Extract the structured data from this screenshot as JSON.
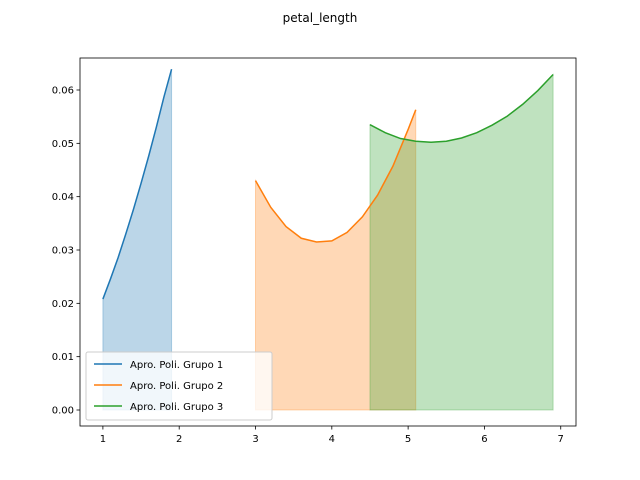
{
  "chart_data": {
    "type": "line",
    "title": "petal_length",
    "xlabel": "",
    "ylabel": "",
    "xlim": [
      0.7,
      7.2
    ],
    "ylim": [
      -0.003,
      0.066
    ],
    "xticks": [
      1,
      2,
      3,
      4,
      5,
      6,
      7
    ],
    "yticks": [
      0.0,
      0.01,
      0.02,
      0.03,
      0.04,
      0.05,
      0.06
    ],
    "ytick_labels": [
      "0.00",
      "0.01",
      "0.02",
      "0.03",
      "0.04",
      "0.05",
      "0.06"
    ],
    "grid": false,
    "legend": "lower-left",
    "series": [
      {
        "name": "Apro. Poli. Grupo 1",
        "color": "#1f77b4",
        "fill": true,
        "x": [
          1.0,
          1.1,
          1.2,
          1.3,
          1.4,
          1.5,
          1.6,
          1.7,
          1.8,
          1.9
        ],
        "y": [
          0.0208,
          0.0246,
          0.0286,
          0.033,
          0.0376,
          0.0425,
          0.0476,
          0.053,
          0.0587,
          0.0639
        ]
      },
      {
        "name": "Apro. Poli. Grupo 2",
        "color": "#ff7f0e",
        "fill": true,
        "x": [
          3.0,
          3.2,
          3.4,
          3.6,
          3.8,
          4.0,
          4.2,
          4.4,
          4.6,
          4.8,
          5.0,
          5.1
        ],
        "y": [
          0.043,
          0.038,
          0.0344,
          0.0322,
          0.0315,
          0.0317,
          0.0333,
          0.0362,
          0.0403,
          0.0457,
          0.0526,
          0.0563
        ]
      },
      {
        "name": "Apro. Poli. Grupo 3",
        "color": "#2ca02c",
        "fill": true,
        "x": [
          4.5,
          4.7,
          4.9,
          5.1,
          5.3,
          5.5,
          5.7,
          5.9,
          6.1,
          6.3,
          6.5,
          6.7,
          6.9
        ],
        "y": [
          0.0535,
          0.052,
          0.0509,
          0.0504,
          0.0502,
          0.0504,
          0.051,
          0.052,
          0.0534,
          0.0551,
          0.0573,
          0.0599,
          0.0629
        ]
      }
    ]
  }
}
